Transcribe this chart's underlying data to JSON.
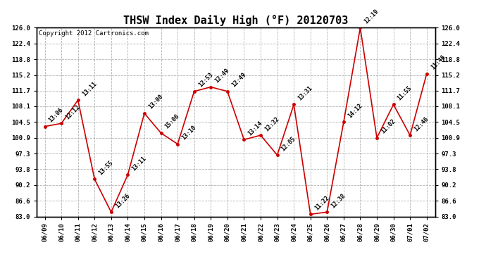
{
  "title": "THSW Index Daily High (°F) 20120703",
  "copyright": "Copyright 2012 Cartronics.com",
  "dates": [
    "06/09",
    "06/10",
    "06/11",
    "06/12",
    "06/13",
    "06/14",
    "06/15",
    "06/16",
    "06/17",
    "06/18",
    "06/19",
    "06/20",
    "06/21",
    "06/22",
    "06/23",
    "06/24",
    "06/25",
    "06/26",
    "06/27",
    "06/28",
    "06/29",
    "06/30",
    "07/01",
    "07/02"
  ],
  "values": [
    103.5,
    104.2,
    109.5,
    91.5,
    84.0,
    92.5,
    106.5,
    102.0,
    99.5,
    111.5,
    112.5,
    111.5,
    100.5,
    101.5,
    97.0,
    108.5,
    83.5,
    84.0,
    104.5,
    126.0,
    100.9,
    108.5,
    101.5,
    115.5
  ],
  "time_labels": [
    "13:06",
    "12:12",
    "13:11",
    "13:55",
    "13:26",
    "13:11",
    "13:00",
    "15:06",
    "13:10",
    "12:53",
    "12:49",
    "12:49",
    "13:14",
    "12:32",
    "12:05",
    "13:31",
    "11:22",
    "12:38",
    "14:12",
    "12:19",
    "11:02",
    "11:55",
    "12:46",
    "11:46"
  ],
  "ylim_min": 83.0,
  "ylim_max": 126.0,
  "yticks": [
    83.0,
    86.6,
    90.2,
    93.8,
    97.3,
    100.9,
    104.5,
    108.1,
    111.7,
    115.2,
    118.8,
    122.4,
    126.0
  ],
  "line_color": "#cc0000",
  "marker_color": "#cc0000",
  "bg_color": "#ffffff",
  "plot_bg_color": "#ffffff",
  "grid_color": "#aaaaaa",
  "title_fontsize": 11,
  "copyright_fontsize": 6.5,
  "label_fontsize": 6
}
